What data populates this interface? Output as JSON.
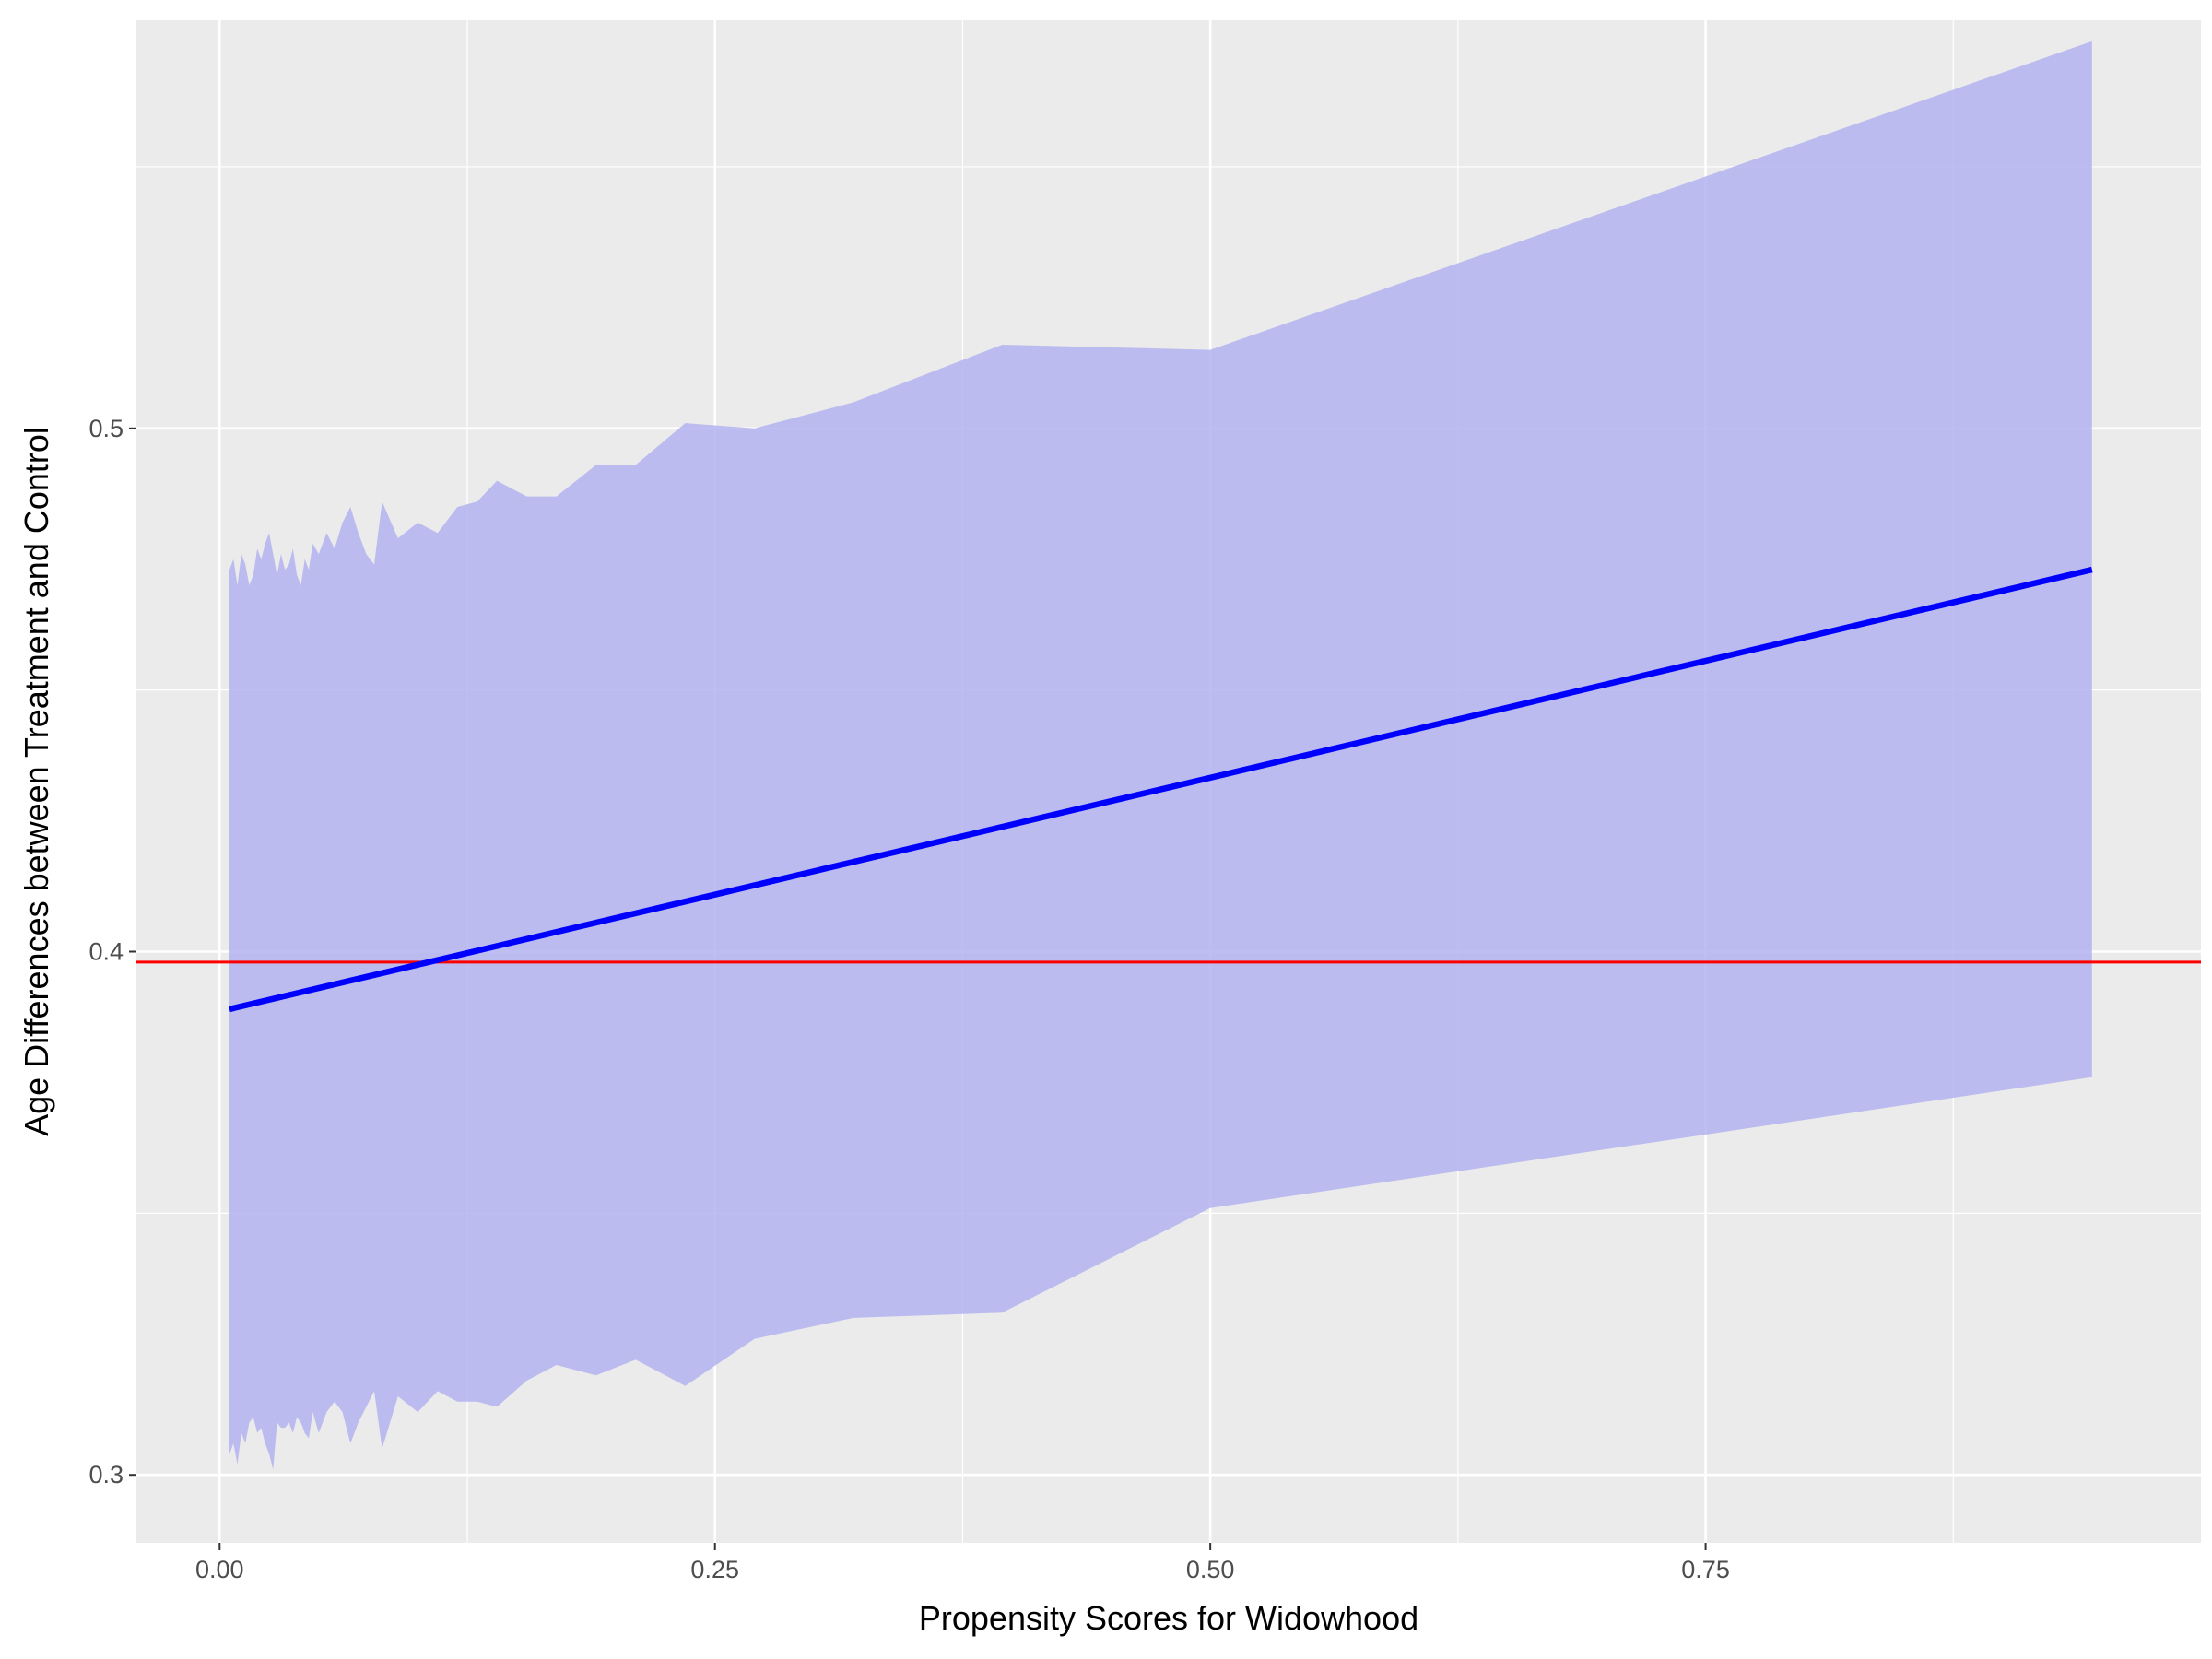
{
  "chart_data": {
    "type": "line",
    "xlabel": "Propensity Scores for Widowhood",
    "ylabel": "Age Differences between Treatment and Control",
    "xlim": [
      -0.042,
      1.0
    ],
    "ylim": [
      0.287,
      0.578
    ],
    "x_ticks": [
      0.0,
      0.25,
      0.5,
      0.75
    ],
    "x_tick_labels": [
      "0.00",
      "0.25",
      "0.50",
      "0.75"
    ],
    "y_ticks": [
      0.3,
      0.4,
      0.5
    ],
    "y_tick_labels": [
      "0.3",
      "0.4",
      "0.5"
    ],
    "grid": true,
    "colors": {
      "panel": "#ebebeb",
      "grid": "#ffffff",
      "ribbon": "#b3b3f0",
      "fit_line": "#0000ff",
      "reference_line": "#ff0000"
    },
    "reference_line": {
      "y": 0.398
    },
    "fit_line": {
      "x": [
        0.005,
        0.945
      ],
      "y": [
        0.389,
        0.473
      ]
    },
    "ribbon": {
      "x": [
        0.005,
        0.007,
        0.009,
        0.011,
        0.013,
        0.015,
        0.017,
        0.019,
        0.021,
        0.023,
        0.025,
        0.027,
        0.029,
        0.031,
        0.033,
        0.035,
        0.037,
        0.039,
        0.041,
        0.043,
        0.045,
        0.047,
        0.05,
        0.054,
        0.058,
        0.062,
        0.066,
        0.07,
        0.074,
        0.078,
        0.082,
        0.09,
        0.1,
        0.11,
        0.12,
        0.13,
        0.14,
        0.155,
        0.17,
        0.19,
        0.21,
        0.235,
        0.27,
        0.32,
        0.395,
        0.5,
        0.945
      ],
      "lower": [
        0.304,
        0.306,
        0.302,
        0.308,
        0.306,
        0.31,
        0.311,
        0.308,
        0.309,
        0.306,
        0.304,
        0.301,
        0.31,
        0.309,
        0.309,
        0.31,
        0.308,
        0.311,
        0.31,
        0.308,
        0.307,
        0.312,
        0.308,
        0.312,
        0.314,
        0.312,
        0.306,
        0.31,
        0.313,
        0.316,
        0.305,
        0.315,
        0.312,
        0.316,
        0.314,
        0.314,
        0.313,
        0.318,
        0.321,
        0.319,
        0.322,
        0.317,
        0.326,
        0.33,
        0.331,
        0.351,
        0.376
      ],
      "upper": [
        0.473,
        0.475,
        0.47,
        0.476,
        0.474,
        0.47,
        0.472,
        0.477,
        0.475,
        0.478,
        0.48,
        0.476,
        0.472,
        0.476,
        0.473,
        0.474,
        0.477,
        0.472,
        0.47,
        0.475,
        0.473,
        0.478,
        0.476,
        0.48,
        0.477,
        0.482,
        0.485,
        0.48,
        0.476,
        0.474,
        0.486,
        0.479,
        0.482,
        0.48,
        0.485,
        0.486,
        0.49,
        0.487,
        0.487,
        0.493,
        0.493,
        0.501,
        0.5,
        0.505,
        0.516,
        0.515,
        0.574
      ]
    }
  }
}
